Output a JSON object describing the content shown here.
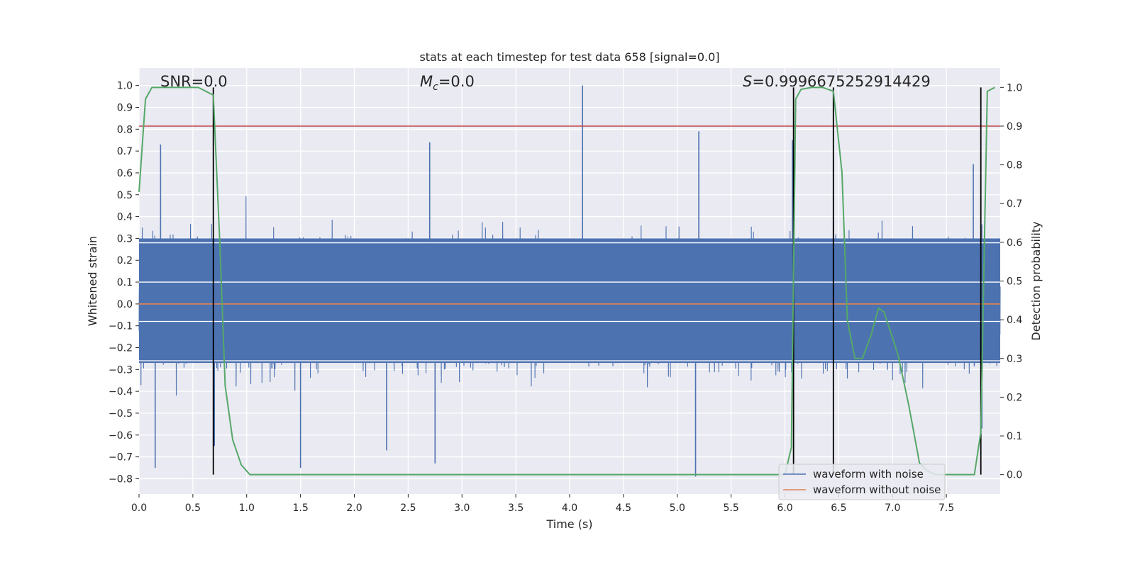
{
  "chart_data": {
    "type": "line",
    "title": "stats at each timestep for test data 658 [signal=0.0]",
    "xlabel": "Time (s)",
    "ylabel": "Whitened strain",
    "y2label": "Detection probability",
    "xlim": [
      0.0,
      8.0
    ],
    "ylim": [
      -0.87,
      1.08
    ],
    "y2lim": [
      -0.05,
      1.05
    ],
    "xticks": [
      0.0,
      0.5,
      1.0,
      1.5,
      2.0,
      2.5,
      3.0,
      3.5,
      4.0,
      4.5,
      5.0,
      5.5,
      6.0,
      6.5,
      7.0,
      7.5
    ],
    "yticks": [
      -0.8,
      -0.7,
      -0.6,
      -0.5,
      -0.4,
      -0.3,
      -0.2,
      -0.1,
      0.0,
      0.1,
      0.2,
      0.3,
      0.4,
      0.5,
      0.6,
      0.7,
      0.8,
      0.9,
      1.0
    ],
    "y2ticks": [
      0.0,
      0.1,
      0.2,
      0.3,
      0.4,
      0.5,
      0.6,
      0.7,
      0.8,
      0.9,
      1.0
    ],
    "grid": true,
    "annotations": {
      "snr": "SNR=0.0",
      "mc": "=0.0",
      "mc_symbol": "M",
      "mc_sub": "c",
      "s": "=0.9996675252914429",
      "s_symbol": "S"
    },
    "threshold": {
      "axis": "y2",
      "value": 0.9,
      "color": "#c44e52"
    },
    "vlines": [
      0.69,
      6.08,
      6.45,
      7.82
    ],
    "vline_range_y2": [
      0.0,
      1.0
    ],
    "series": [
      {
        "name": "waveform with noise",
        "axis": "y",
        "color": "#4c72b0",
        "kind": "noise",
        "typical_band": [
          -0.27,
          0.3
        ],
        "peaks": [
          {
            "t": 0.2,
            "v": 0.73
          },
          {
            "t": 0.15,
            "v": -0.75
          },
          {
            "t": 0.7,
            "v": -0.65
          },
          {
            "t": 1.5,
            "v": -0.75
          },
          {
            "t": 2.3,
            "v": -0.67
          },
          {
            "t": 2.7,
            "v": 0.74
          },
          {
            "t": 2.75,
            "v": -0.73
          },
          {
            "t": 4.12,
            "v": 1.0
          },
          {
            "t": 5.17,
            "v": -0.79
          },
          {
            "t": 5.2,
            "v": 0.79
          },
          {
            "t": 6.07,
            "v": 0.75
          },
          {
            "t": 6.45,
            "v": 0.66
          },
          {
            "t": 7.75,
            "v": 0.64
          },
          {
            "t": 7.83,
            "v": -0.57
          }
        ]
      },
      {
        "name": "waveform without noise",
        "axis": "y",
        "color": "#dd8452",
        "x": [
          0.0,
          8.0
        ],
        "y": [
          0.0,
          0.0
        ]
      },
      {
        "name": "detection probability",
        "axis": "y2",
        "color": "#55a868",
        "x": [
          0.0,
          0.06,
          0.12,
          0.25,
          0.4,
          0.55,
          0.62,
          0.69,
          0.75,
          0.8,
          0.87,
          0.95,
          1.03,
          1.1,
          1.5,
          3.0,
          5.0,
          6.0,
          6.06,
          6.1,
          6.15,
          6.25,
          6.35,
          6.45,
          6.53,
          6.58,
          6.65,
          6.72,
          6.8,
          6.87,
          6.92,
          6.98,
          7.05,
          7.15,
          7.25,
          7.32,
          7.4,
          7.6,
          7.7,
          7.76,
          7.82,
          7.88,
          7.95
        ],
        "y": [
          0.73,
          0.97,
          1.0,
          1.0,
          1.0,
          1.0,
          0.99,
          0.98,
          0.6,
          0.23,
          0.09,
          0.025,
          0.0,
          0.0,
          0.0,
          0.0,
          0.0,
          0.0,
          0.07,
          0.97,
          0.995,
          1.0,
          1.0,
          0.99,
          0.78,
          0.4,
          0.3,
          0.3,
          0.36,
          0.43,
          0.42,
          0.37,
          0.31,
          0.18,
          0.03,
          0.01,
          0.0,
          0.0,
          0.0,
          0.0,
          0.11,
          0.99,
          1.0
        ]
      }
    ],
    "legend": {
      "position": "lower-right",
      "entries": [
        "waveform with noise",
        "waveform without noise"
      ]
    }
  }
}
